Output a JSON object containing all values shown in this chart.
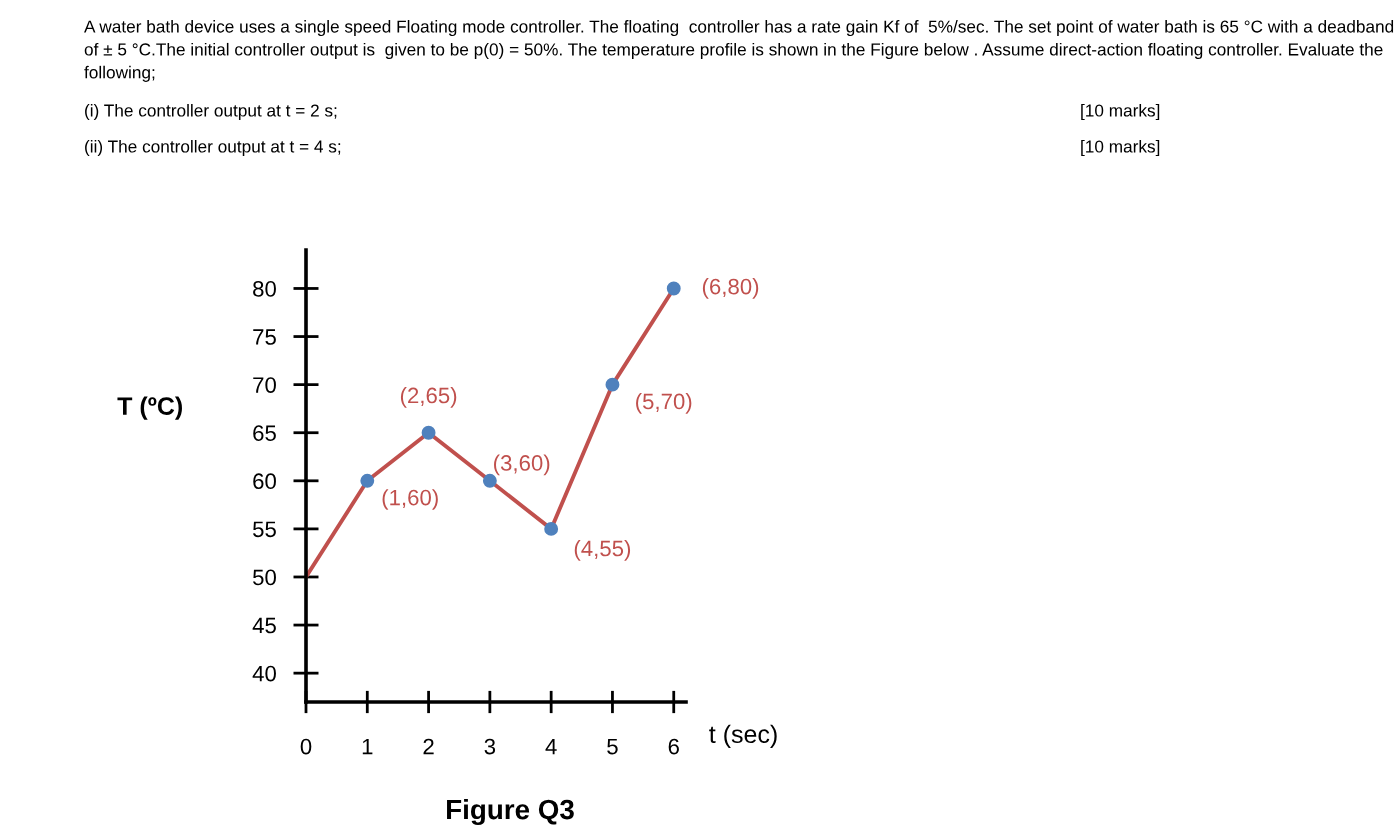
{
  "chart_data": {
    "type": "line",
    "title": "A water bath device uses a single speed Floating mode controller. The floating  controller has a rate gain Kf of  5%/sec. The set point of water bath is 65 °C with a deadband of ± 5 °C.The initial controller output is  given to be p(0) = 50%. The temperature profile is shown in the Figure below . Assume direct-action floating controller. Evaluate the following;",
    "annotations": [
      "(i) The controller output at t = 2 s;",
      "[10 marks]",
      "(ii) The controller output at t = 4 s;",
      "[10 marks]",
      "Figure Q3",
      {
        "text": "(1,60)",
        "x": 1,
        "y": 60
      },
      {
        "text": "(2,65)",
        "x": 2,
        "y": 65
      },
      {
        "text": "(3,60)",
        "x": 3,
        "y": 60
      },
      {
        "text": "(4,55)",
        "x": 4,
        "y": 55
      },
      {
        "text": "(5,70)",
        "x": 5,
        "y": 70
      },
      {
        "text": "(6,80)",
        "x": 6,
        "y": 80
      }
    ],
    "xlabel": "t (sec)",
    "ylabel": "T (ºC)",
    "series": [
      {
        "color": "#c0504d",
        "marker": "none",
        "line_style": "solid",
        "x": [
          0,
          1,
          2,
          3,
          4,
          5,
          6
        ],
        "values": [
          50,
          60,
          65,
          60,
          55,
          70,
          80
        ]
      },
      {
        "type": "scatter",
        "color": "#4f81bd",
        "marker": "circle",
        "x": [
          1,
          2,
          3,
          4,
          5,
          6
        ],
        "values": [
          60,
          65,
          60,
          55,
          70,
          80
        ]
      }
    ],
    "xlim": [
      0,
      6.2
    ],
    "ylim": [
      37,
      84
    ],
    "xticks": [
      0,
      1,
      2,
      3,
      4,
      5,
      6
    ],
    "yticks": [
      40,
      45,
      50,
      55,
      60,
      65,
      70,
      75,
      80
    ],
    "grid": false
  }
}
